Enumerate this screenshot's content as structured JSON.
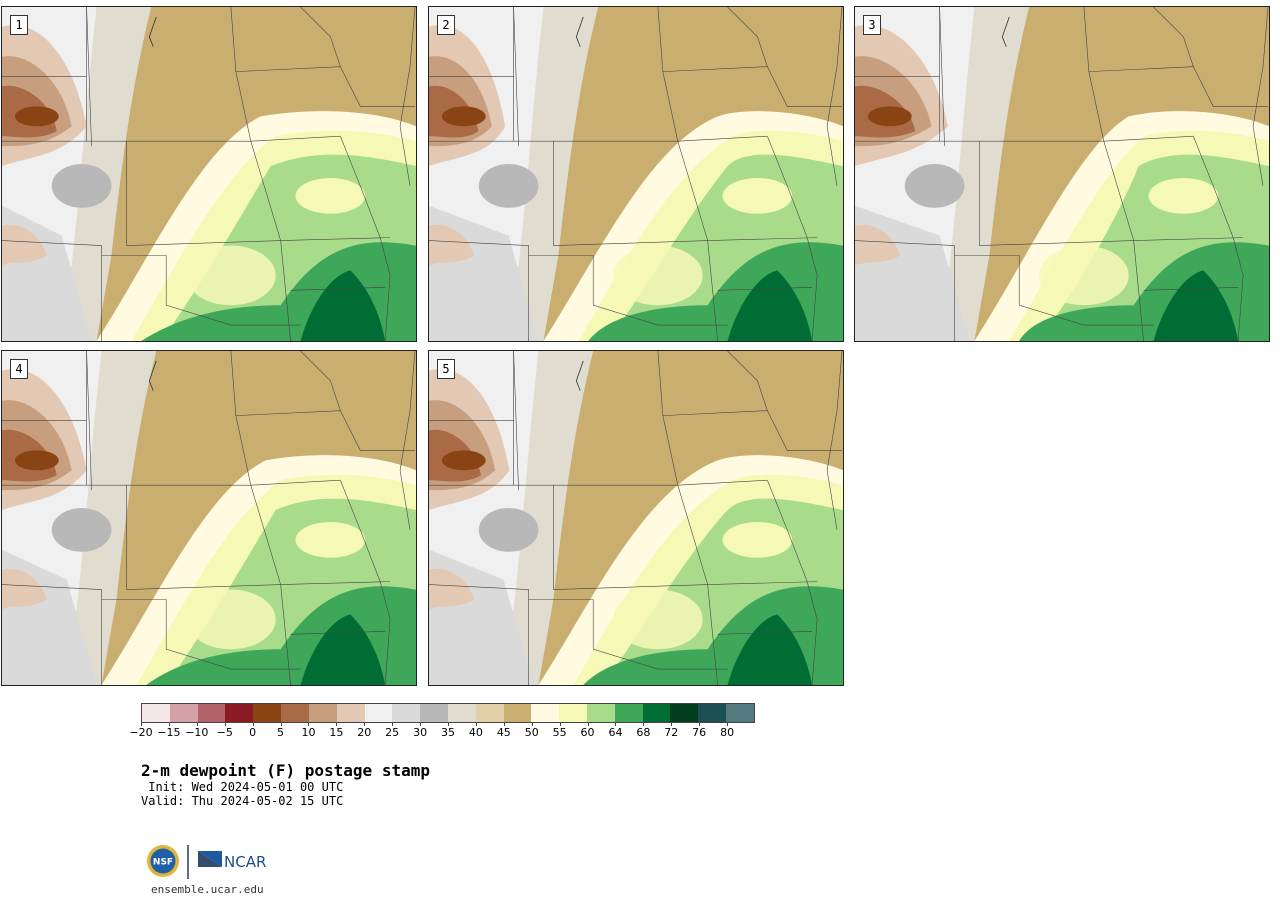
{
  "panels": [
    {
      "label": "1"
    },
    {
      "label": "2"
    },
    {
      "label": "3"
    },
    {
      "label": "4"
    },
    {
      "label": "5"
    }
  ],
  "colorbar": {
    "colors": [
      "#f3e7ea",
      "#d4a1a8",
      "#b3626a",
      "#8a1a24",
      "#8a4414",
      "#a96a45",
      "#c79f7f",
      "#e3c8b3",
      "#f0f0f0",
      "#dadada",
      "#b8b8b8",
      "#e0ddd0",
      "#e2d1a8",
      "#c9ae70",
      "#fffae0",
      "#f6f8b6",
      "#a8dc8a",
      "#3fa75a",
      "#006e34",
      "#003e1e",
      "#1b4f53",
      "#54797e"
    ],
    "ticks": [
      "−20",
      "−15",
      "−10",
      "−5",
      "0",
      "5",
      "10",
      "15",
      "20",
      "25",
      "30",
      "35",
      "40",
      "45",
      "50",
      "55",
      "60",
      "64",
      "68",
      "72",
      "76",
      "80"
    ]
  },
  "title": "2-m dewpoint (F) postage stamp",
  "init": " Init: Wed 2024-05-01 00 UTC",
  "valid": "Valid: Thu 2024-05-02 15 UTC",
  "logos": {
    "nsf": "NSF",
    "ncar": "NCAR"
  },
  "site": "ensemble.ucar.edu"
}
